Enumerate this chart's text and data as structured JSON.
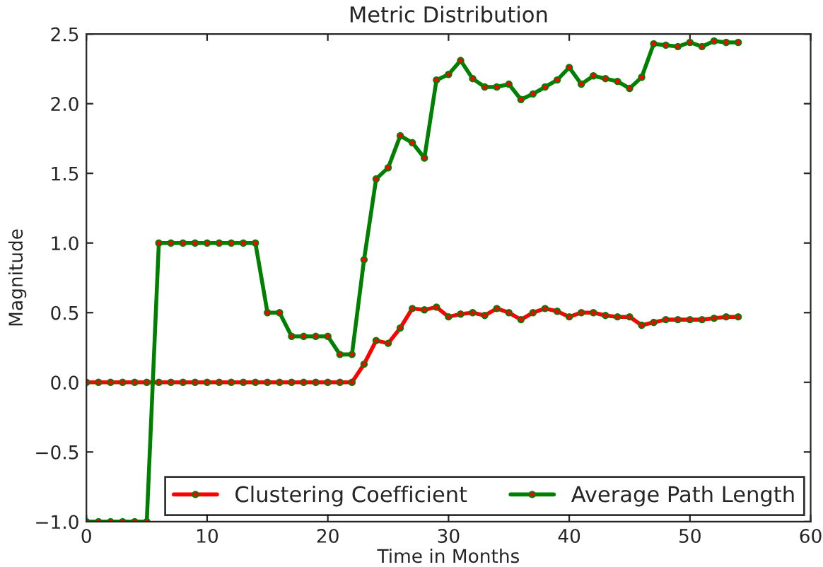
{
  "chart_data": {
    "type": "line",
    "title": "Metric Distribution",
    "xlabel": "Time in Months",
    "ylabel": "Magnitude",
    "x": [
      0,
      1,
      2,
      3,
      4,
      5,
      6,
      7,
      8,
      9,
      10,
      11,
      12,
      13,
      14,
      15,
      16,
      17,
      18,
      19,
      20,
      21,
      22,
      23,
      24,
      25,
      26,
      27,
      28,
      29,
      30,
      31,
      32,
      33,
      34,
      35,
      36,
      37,
      38,
      39,
      40,
      41,
      42,
      43,
      44,
      45,
      46,
      47,
      48,
      49,
      50,
      51,
      52,
      53,
      54
    ],
    "series": [
      {
        "name": "Clustering Coefficient",
        "color": "#ff0000",
        "values": [
          0,
          0,
          0,
          0,
          0,
          0,
          0,
          0,
          0,
          0,
          0,
          0,
          0,
          0,
          0,
          0,
          0,
          0,
          0,
          0,
          0,
          0,
          0,
          0.13,
          0.3,
          0.28,
          0.39,
          0.53,
          0.52,
          0.54,
          0.47,
          0.49,
          0.5,
          0.48,
          0.53,
          0.5,
          0.45,
          0.5,
          0.53,
          0.51,
          0.47,
          0.5,
          0.5,
          0.48,
          0.47,
          0.47,
          0.41,
          0.43,
          0.45,
          0.45,
          0.45,
          0.45,
          0.46,
          0.47,
          0.47
        ]
      },
      {
        "name": "Average Path Length",
        "color": "#008000",
        "values": [
          -1,
          -1,
          -1,
          -1,
          -1,
          -1,
          1,
          1,
          1,
          1,
          1,
          1,
          1,
          1,
          1,
          0.5,
          0.5,
          0.33,
          0.33,
          0.33,
          0.33,
          0.2,
          0.2,
          0.88,
          1.46,
          1.54,
          1.77,
          1.72,
          1.61,
          2.17,
          2.21,
          2.31,
          2.18,
          2.12,
          2.12,
          2.14,
          2.03,
          2.07,
          2.12,
          2.17,
          2.26,
          2.14,
          2.2,
          2.18,
          2.16,
          2.11,
          2.19,
          2.43,
          2.42,
          2.41,
          2.44,
          2.41,
          2.45,
          2.44,
          2.44
        ]
      }
    ],
    "xlim": [
      0,
      60
    ],
    "xticks": [
      0,
      10,
      20,
      30,
      40,
      50,
      60
    ],
    "ylim": [
      -1.0,
      2.5
    ],
    "yticks": [
      {
        "value": -1.0,
        "label": "−1.0"
      },
      {
        "value": -0.5,
        "label": "−0.5"
      },
      {
        "value": 0.0,
        "label": "0.0"
      },
      {
        "value": 0.5,
        "label": "0.5"
      },
      {
        "value": 1.0,
        "label": "1.0"
      },
      {
        "value": 1.5,
        "label": "1.5"
      },
      {
        "value": 2.0,
        "label": "2.0"
      },
      {
        "value": 2.5,
        "label": "2.5"
      }
    ],
    "marker": "circle",
    "line_style": "solid",
    "grid": false,
    "legend": "bottom right"
  }
}
